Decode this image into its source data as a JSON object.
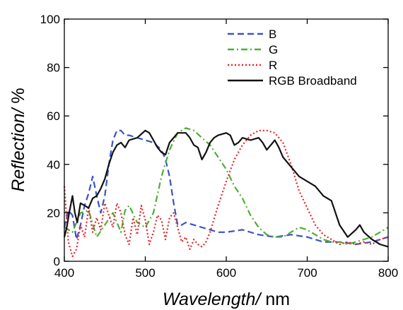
{
  "chart_data": {
    "type": "line",
    "xlabel": {
      "italic": "Wavelength/",
      "unit": " nm"
    },
    "ylabel": {
      "italic": "Reflection/",
      "unit": " %"
    },
    "xlim": [
      400,
      800
    ],
    "ylim": [
      0,
      100
    ],
    "xticks": [
      "400",
      "500",
      "600",
      "700",
      "800"
    ],
    "yticks": [
      "0",
      "20",
      "40",
      "60",
      "80",
      "100"
    ],
    "grid": false,
    "legend_position": "top-right",
    "series": [
      {
        "name": "B",
        "color": "#3a52c8",
        "dash": "dashed",
        "x": [
          400,
          405,
          410,
          415,
          420,
          425,
          430,
          435,
          440,
          445,
          450,
          455,
          460,
          465,
          470,
          475,
          480,
          490,
          500,
          510,
          520,
          525,
          530,
          535,
          540,
          545,
          550,
          560,
          570,
          580,
          590,
          600,
          620,
          640,
          660,
          680,
          700,
          720,
          740,
          760,
          780,
          800
        ],
        "y": [
          14,
          21,
          19,
          9,
          15,
          23,
          28,
          35,
          27,
          20,
          27,
          40,
          50,
          54,
          54,
          52,
          52,
          51,
          50,
          49,
          46,
          42,
          35,
          24,
          15,
          15,
          16,
          15,
          14,
          13,
          12,
          12,
          13,
          11,
          10,
          11,
          10,
          8,
          8,
          7,
          8,
          10
        ]
      },
      {
        "name": "G",
        "color": "#4caf34",
        "dash": "dashdot",
        "x": [
          400,
          410,
          420,
          430,
          440,
          450,
          460,
          470,
          475,
          480,
          490,
          500,
          510,
          520,
          530,
          540,
          550,
          560,
          570,
          580,
          590,
          600,
          610,
          620,
          630,
          640,
          650,
          660,
          670,
          680,
          690,
          700,
          710,
          720,
          730,
          740,
          750,
          760,
          770,
          780,
          790,
          800
        ],
        "y": [
          14,
          12,
          20,
          21,
          10,
          15,
          20,
          12,
          21,
          23,
          16,
          14,
          20,
          35,
          46,
          53,
          55,
          54,
          51,
          48,
          43,
          38,
          31,
          26,
          19,
          14,
          11,
          10,
          10,
          12,
          14,
          13,
          11,
          9,
          8,
          8,
          7,
          8,
          9,
          10,
          12,
          14
        ]
      },
      {
        "name": "R",
        "color": "#e8232a",
        "dash": "dotted",
        "x": [
          400,
          405,
          410,
          415,
          420,
          425,
          430,
          435,
          440,
          445,
          450,
          455,
          460,
          465,
          470,
          475,
          480,
          485,
          490,
          495,
          500,
          505,
          510,
          515,
          520,
          525,
          530,
          535,
          540,
          545,
          550,
          555,
          560,
          565,
          570,
          575,
          580,
          590,
          600,
          610,
          620,
          630,
          640,
          650,
          660,
          670,
          680,
          690,
          700,
          710,
          720,
          730,
          740,
          750,
          760,
          770,
          780,
          790,
          800
        ],
        "y": [
          31,
          8,
          2,
          5,
          15,
          10,
          22,
          12,
          18,
          13,
          24,
          19,
          14,
          24,
          20,
          11,
          7,
          18,
          11,
          23,
          17,
          7,
          12,
          19,
          17,
          9,
          18,
          20,
          14,
          8,
          10,
          5,
          9,
          7,
          6,
          8,
          12,
          23,
          33,
          42,
          48,
          52,
          54,
          54,
          53,
          49,
          40,
          29,
          22,
          15,
          11,
          9,
          7,
          8,
          7,
          8,
          7,
          9,
          10
        ]
      },
      {
        "name": "RGB Broadband",
        "color": "#111111",
        "dash": "solid",
        "x": [
          400,
          403,
          406,
          410,
          413,
          416,
          420,
          425,
          430,
          435,
          440,
          445,
          450,
          455,
          460,
          465,
          470,
          475,
          480,
          490,
          500,
          505,
          510,
          515,
          520,
          525,
          530,
          535,
          540,
          550,
          555,
          560,
          565,
          570,
          575,
          580,
          585,
          590,
          600,
          605,
          610,
          615,
          620,
          630,
          640,
          645,
          650,
          655,
          660,
          665,
          670,
          680,
          690,
          700,
          710,
          720,
          730,
          740,
          750,
          760,
          765,
          770,
          780,
          790,
          800
        ],
        "y": [
          10,
          14,
          20,
          27,
          20,
          16,
          24,
          23,
          22,
          26,
          27,
          30,
          34,
          40,
          45,
          48,
          49,
          47,
          50,
          51,
          54,
          53,
          50,
          47,
          45,
          44,
          49,
          51,
          53,
          53,
          51,
          48,
          47,
          42,
          45,
          49,
          51,
          52,
          53,
          52,
          48,
          49,
          51,
          50,
          51,
          49,
          46,
          48,
          50,
          47,
          43,
          39,
          35,
          33,
          31,
          27,
          25,
          15,
          10,
          13,
          15,
          12,
          9,
          7,
          6
        ]
      }
    ]
  }
}
